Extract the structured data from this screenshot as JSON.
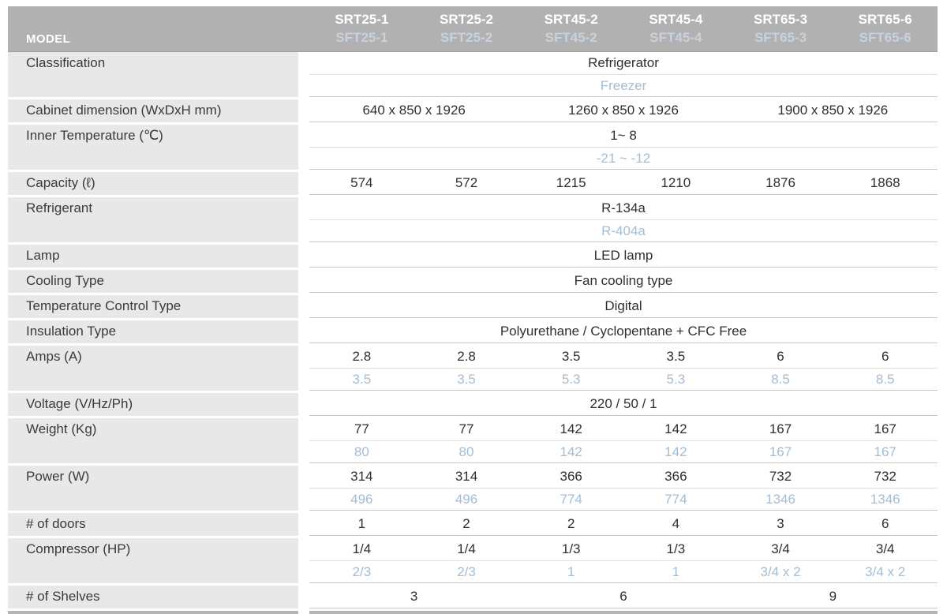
{
  "colors": {
    "header_bg": "#b1b1b1",
    "header_model_text": "#ffffff",
    "header_sft_text": "#c7d2dd",
    "label_cell_bg": "#e8e8e8",
    "label_text": "#3a3a3a",
    "value_text": "#2f2f2f",
    "freezer_value_text": "#a2bdd6",
    "row_divider": "#dedede",
    "group_divider": "#c9c9c9",
    "bottom_rule": "#b5b5b5"
  },
  "table": {
    "header": {
      "label": "MODEL",
      "columns": [
        {
          "srt": "SRT25-1",
          "sft": "SFT25-1"
        },
        {
          "srt": "SRT25-2",
          "sft": "SFT25-2"
        },
        {
          "srt": "SRT45-2",
          "sft": "SFT45-2"
        },
        {
          "srt": "SRT45-4",
          "sft": "SFT45-4"
        },
        {
          "srt": "SRT65-3",
          "sft": "SFT65-3"
        },
        {
          "srt": "SRT65-6",
          "sft": "SFT65-6"
        }
      ]
    },
    "rows": [
      {
        "label": "Classification",
        "subrows": [
          {
            "tone": "dark",
            "cells": [
              {
                "text": "Refrigerator",
                "span": 6
              }
            ]
          },
          {
            "tone": "blue",
            "cells": [
              {
                "text": "Freezer",
                "span": 6
              }
            ]
          }
        ]
      },
      {
        "label": "Cabinet dimension (WxDxH mm)",
        "subrows": [
          {
            "tone": "dark",
            "cells": [
              {
                "text": "640 x 850 x 1926",
                "span": 2
              },
              {
                "text": "1260 x 850 x 1926",
                "span": 2
              },
              {
                "text": "1900 x 850 x 1926",
                "span": 2
              }
            ]
          }
        ]
      },
      {
        "label": "Inner Temperature (℃)",
        "subrows": [
          {
            "tone": "dark",
            "cells": [
              {
                "text": "1~ 8",
                "span": 6
              }
            ]
          },
          {
            "tone": "blue",
            "cells": [
              {
                "text": "-21 ~ -12",
                "span": 6
              }
            ]
          }
        ]
      },
      {
        "label": "Capacity (ℓ)",
        "subrows": [
          {
            "tone": "dark",
            "cells": [
              {
                "text": "574",
                "span": 1
              },
              {
                "text": "572",
                "span": 1
              },
              {
                "text": "1215",
                "span": 1
              },
              {
                "text": "1210",
                "span": 1
              },
              {
                "text": "1876",
                "span": 1
              },
              {
                "text": "1868",
                "span": 1
              }
            ]
          }
        ]
      },
      {
        "label": "Refrigerant",
        "subrows": [
          {
            "tone": "dark",
            "cells": [
              {
                "text": "R-134a",
                "span": 6
              }
            ]
          },
          {
            "tone": "blue",
            "cells": [
              {
                "text": "R-404a",
                "span": 6
              }
            ]
          }
        ]
      },
      {
        "label": "Lamp",
        "subrows": [
          {
            "tone": "dark",
            "cells": [
              {
                "text": "LED lamp",
                "span": 6
              }
            ]
          }
        ]
      },
      {
        "label": "Cooling Type",
        "subrows": [
          {
            "tone": "dark",
            "cells": [
              {
                "text": "Fan cooling type",
                "span": 6
              }
            ]
          }
        ]
      },
      {
        "label": "Temperature Control Type",
        "subrows": [
          {
            "tone": "dark",
            "cells": [
              {
                "text": "Digital",
                "span": 6
              }
            ]
          }
        ]
      },
      {
        "label": "Insulation Type",
        "subrows": [
          {
            "tone": "dark",
            "cells": [
              {
                "text": "Polyurethane / Cyclopentane + CFC Free",
                "span": 6
              }
            ]
          }
        ]
      },
      {
        "label": "Amps (A)",
        "subrows": [
          {
            "tone": "dark",
            "cells": [
              {
                "text": "2.8",
                "span": 1
              },
              {
                "text": "2.8",
                "span": 1
              },
              {
                "text": "3.5",
                "span": 1
              },
              {
                "text": "3.5",
                "span": 1
              },
              {
                "text": "6",
                "span": 1
              },
              {
                "text": "6",
                "span": 1
              }
            ]
          },
          {
            "tone": "blue",
            "cells": [
              {
                "text": "3.5",
                "span": 1
              },
              {
                "text": "3.5",
                "span": 1
              },
              {
                "text": "5.3",
                "span": 1
              },
              {
                "text": "5.3",
                "span": 1
              },
              {
                "text": "8.5",
                "span": 1
              },
              {
                "text": "8.5",
                "span": 1
              }
            ]
          }
        ]
      },
      {
        "label": "Voltage (V/Hz/Ph)",
        "subrows": [
          {
            "tone": "dark",
            "cells": [
              {
                "text": "220 / 50 / 1",
                "span": 6
              }
            ]
          }
        ]
      },
      {
        "label": "Weight (Kg)",
        "subrows": [
          {
            "tone": "dark",
            "cells": [
              {
                "text": "77",
                "span": 1
              },
              {
                "text": "77",
                "span": 1
              },
              {
                "text": "142",
                "span": 1
              },
              {
                "text": "142",
                "span": 1
              },
              {
                "text": "167",
                "span": 1
              },
              {
                "text": "167",
                "span": 1
              }
            ]
          },
          {
            "tone": "blue",
            "cells": [
              {
                "text": "80",
                "span": 1
              },
              {
                "text": "80",
                "span": 1
              },
              {
                "text": "142",
                "span": 1
              },
              {
                "text": "142",
                "span": 1
              },
              {
                "text": "167",
                "span": 1
              },
              {
                "text": "167",
                "span": 1
              }
            ]
          }
        ]
      },
      {
        "label": "Power (W)",
        "subrows": [
          {
            "tone": "dark",
            "cells": [
              {
                "text": "314",
                "span": 1
              },
              {
                "text": "314",
                "span": 1
              },
              {
                "text": "366",
                "span": 1
              },
              {
                "text": "366",
                "span": 1
              },
              {
                "text": "732",
                "span": 1
              },
              {
                "text": "732",
                "span": 1
              }
            ]
          },
          {
            "tone": "blue",
            "cells": [
              {
                "text": "496",
                "span": 1
              },
              {
                "text": "496",
                "span": 1
              },
              {
                "text": "774",
                "span": 1
              },
              {
                "text": "774",
                "span": 1
              },
              {
                "text": "1346",
                "span": 1
              },
              {
                "text": "1346",
                "span": 1
              }
            ]
          }
        ]
      },
      {
        "label": "# of doors",
        "subrows": [
          {
            "tone": "dark",
            "cells": [
              {
                "text": "1",
                "span": 1
              },
              {
                "text": "2",
                "span": 1
              },
              {
                "text": "2",
                "span": 1
              },
              {
                "text": "4",
                "span": 1
              },
              {
                "text": "3",
                "span": 1
              },
              {
                "text": "6",
                "span": 1
              }
            ]
          }
        ]
      },
      {
        "label": "Compressor (HP)",
        "subrows": [
          {
            "tone": "dark",
            "cells": [
              {
                "text": "1/4",
                "span": 1
              },
              {
                "text": "1/4",
                "span": 1
              },
              {
                "text": "1/3",
                "span": 1
              },
              {
                "text": "1/3",
                "span": 1
              },
              {
                "text": "3/4",
                "span": 1
              },
              {
                "text": "3/4",
                "span": 1
              }
            ]
          },
          {
            "tone": "blue",
            "cells": [
              {
                "text": "2/3",
                "span": 1
              },
              {
                "text": "2/3",
                "span": 1
              },
              {
                "text": "1",
                "span": 1
              },
              {
                "text": "1",
                "span": 1
              },
              {
                "text": "3/4 x 2",
                "span": 1
              },
              {
                "text": "3/4 x 2",
                "span": 1
              }
            ]
          }
        ]
      },
      {
        "label": "# of  Shelves",
        "subrows": [
          {
            "tone": "dark",
            "cells": [
              {
                "text": "3",
                "span": 2
              },
              {
                "text": "6",
                "span": 2
              },
              {
                "text": "9",
                "span": 2
              }
            ]
          }
        ]
      }
    ]
  }
}
